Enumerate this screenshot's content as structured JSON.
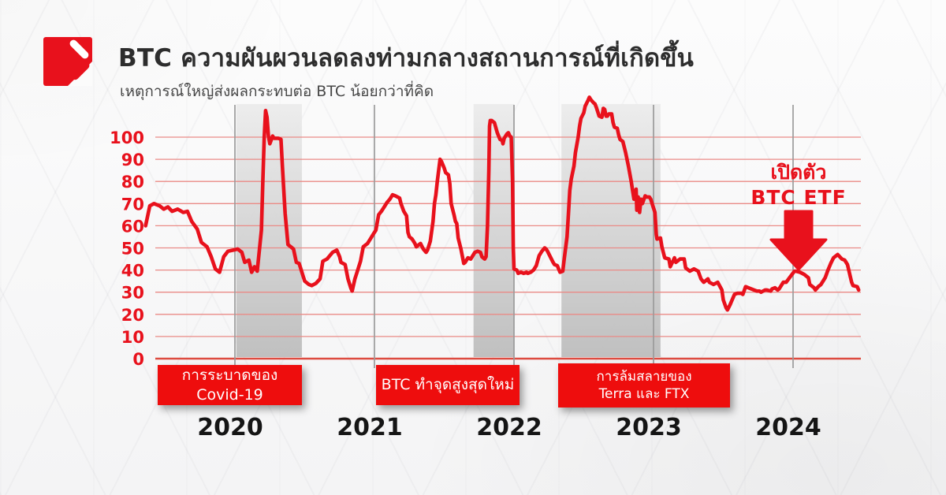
{
  "header": {
    "title": "BTC ความผันผวนลดลงท่ามกลางสถานการณ์ที่เกิดขึ้น",
    "subtitle": "เหตุการณ์ใหญ่ส่งผลกระทบต่อ BTC น้อยกว่าที่คิด"
  },
  "colors": {
    "line_red": "#e8111c",
    "box_red": "#ee0d0d",
    "grid_pink": "#ea8a86",
    "axis_red": "#dd4b40",
    "band_gray_top": "#ececec",
    "band_gray_bottom": "#bdbdbd",
    "year_line_gray": "#9b9b9b",
    "title_dark": "#2d2d2d"
  },
  "chart_data": {
    "type": "line",
    "xlabel": "",
    "ylabel": "",
    "x_unit": "year",
    "ylim": [
      0,
      120
    ],
    "xlim": [
      2019.36,
      2024.55
    ],
    "grid": true,
    "y_ticks": [
      0,
      10,
      20,
      30,
      40,
      50,
      60,
      70,
      80,
      90,
      100
    ],
    "x_ticks": [
      2020,
      2021,
      2022,
      2023,
      2024
    ],
    "events": [
      {
        "label": "การระบาดของ Covid-19",
        "band_start": 2020.01,
        "band_end": 2020.48
      },
      {
        "label": "BTC ทำจุดสูงสุดใหม่",
        "band_start": 2021.71,
        "band_end": 2022.0
      },
      {
        "lines": [
          "การล้มสลายของ",
          "Terra และ FTX"
        ],
        "band_start": 2022.34,
        "band_end": 2023.05
      }
    ],
    "annotation": {
      "lines": [
        "เปิดตัว",
        "BTC ETF"
      ],
      "x": 2024.04
    },
    "points": [
      [
        2019.36,
        60
      ],
      [
        2019.39,
        69
      ],
      [
        2019.42,
        70
      ],
      [
        2019.46,
        69
      ],
      [
        2019.49,
        67.5
      ],
      [
        2019.52,
        68.5
      ],
      [
        2019.55,
        66.5
      ],
      [
        2019.59,
        67.5
      ],
      [
        2019.63,
        66
      ],
      [
        2019.66,
        66.5
      ],
      [
        2019.69,
        62
      ],
      [
        2019.73,
        58.5
      ],
      [
        2019.76,
        52.5
      ],
      [
        2019.8,
        50.5
      ],
      [
        2019.83,
        46
      ],
      [
        2019.86,
        40.5
      ],
      [
        2019.89,
        39
      ],
      [
        2019.92,
        46
      ],
      [
        2019.95,
        48.5
      ],
      [
        2019.99,
        49
      ],
      [
        2020.02,
        49.5
      ],
      [
        2020.05,
        48
      ],
      [
        2020.07,
        43.5
      ],
      [
        2020.1,
        44.5
      ],
      [
        2020.12,
        39
      ],
      [
        2020.14,
        41.5
      ],
      [
        2020.16,
        39.5
      ],
      [
        2020.19,
        58
      ],
      [
        2020.2,
        80
      ],
      [
        2020.21,
        100
      ],
      [
        2020.22,
        112
      ],
      [
        2020.23,
        109
      ],
      [
        2020.24,
        100.5
      ],
      [
        2020.25,
        97
      ],
      [
        2020.27,
        100.5
      ],
      [
        2020.28,
        99.5
      ],
      [
        2020.31,
        99.5
      ],
      [
        2020.33,
        99
      ],
      [
        2020.34,
        87
      ],
      [
        2020.35,
        76.5
      ],
      [
        2020.36,
        65.5
      ],
      [
        2020.37,
        58.5
      ],
      [
        2020.38,
        51.5
      ],
      [
        2020.4,
        50.5
      ],
      [
        2020.42,
        49.5
      ],
      [
        2020.44,
        43.5
      ],
      [
        2020.46,
        43
      ],
      [
        2020.5,
        35
      ],
      [
        2020.53,
        33.5
      ],
      [
        2020.55,
        33
      ],
      [
        2020.58,
        34
      ],
      [
        2020.61,
        36
      ],
      [
        2020.63,
        44
      ],
      [
        2020.66,
        45
      ],
      [
        2020.68,
        46.5
      ],
      [
        2020.7,
        48
      ],
      [
        2020.73,
        49
      ],
      [
        2020.75,
        46
      ],
      [
        2020.76,
        43.5
      ],
      [
        2020.79,
        42.5
      ],
      [
        2020.81,
        36
      ],
      [
        2020.83,
        32
      ],
      [
        2020.84,
        30.5
      ],
      [
        2020.86,
        36
      ],
      [
        2020.88,
        40
      ],
      [
        2020.9,
        44
      ],
      [
        2020.92,
        50.5
      ],
      [
        2020.95,
        52
      ],
      [
        2020.97,
        54
      ],
      [
        2020.99,
        56
      ],
      [
        2021.01,
        58
      ],
      [
        2021.03,
        65
      ],
      [
        2021.05,
        66.5
      ],
      [
        2021.07,
        68.5
      ],
      [
        2021.09,
        70.5
      ],
      [
        2021.11,
        72
      ],
      [
        2021.13,
        74
      ],
      [
        2021.15,
        73.5
      ],
      [
        2021.18,
        72.5
      ],
      [
        2021.19,
        70
      ],
      [
        2021.21,
        66.5
      ],
      [
        2021.23,
        64.5
      ],
      [
        2021.24,
        57
      ],
      [
        2021.25,
        55
      ],
      [
        2021.27,
        54
      ],
      [
        2021.29,
        52
      ],
      [
        2021.3,
        50.5
      ],
      [
        2021.32,
        51.5
      ],
      [
        2021.33,
        52
      ],
      [
        2021.35,
        49.5
      ],
      [
        2021.37,
        48
      ],
      [
        2021.38,
        49
      ],
      [
        2021.4,
        53
      ],
      [
        2021.42,
        62
      ],
      [
        2021.43,
        70
      ],
      [
        2021.44,
        74
      ],
      [
        2021.45,
        80
      ],
      [
        2021.47,
        90
      ],
      [
        2021.48,
        89
      ],
      [
        2021.5,
        86
      ],
      [
        2021.51,
        84
      ],
      [
        2021.53,
        83
      ],
      [
        2021.54,
        79
      ],
      [
        2021.55,
        70
      ],
      [
        2021.57,
        65
      ],
      [
        2021.58,
        62
      ],
      [
        2021.59,
        61
      ],
      [
        2021.6,
        54.5
      ],
      [
        2021.62,
        49.5
      ],
      [
        2021.64,
        43
      ],
      [
        2021.65,
        43.5
      ],
      [
        2021.67,
        45.5
      ],
      [
        2021.69,
        45
      ],
      [
        2021.71,
        47
      ],
      [
        2021.72,
        48
      ],
      [
        2021.74,
        48.5
      ],
      [
        2021.76,
        48
      ],
      [
        2021.77,
        46
      ],
      [
        2021.79,
        45
      ],
      [
        2021.8,
        46
      ],
      [
        2021.81,
        60
      ],
      [
        2021.82,
        85
      ],
      [
        2021.825,
        105
      ],
      [
        2021.83,
        107.5
      ],
      [
        2021.84,
        107.5
      ],
      [
        2021.85,
        107
      ],
      [
        2021.86,
        106.5
      ],
      [
        2021.88,
        102
      ],
      [
        2021.89,
        100.5
      ],
      [
        2021.9,
        99
      ],
      [
        2021.915,
        98.5
      ],
      [
        2021.921,
        97
      ],
      [
        2021.93,
        99.5
      ],
      [
        2021.95,
        101.5
      ],
      [
        2021.96,
        102
      ],
      [
        2021.97,
        100.5
      ],
      [
        2021.98,
        100
      ],
      [
        2021.99,
        80
      ],
      [
        2021.995,
        50
      ],
      [
        2022.0,
        40.5
      ],
      [
        2022.02,
        40
      ],
      [
        2022.03,
        38.5
      ],
      [
        2022.05,
        39
      ],
      [
        2022.07,
        38.5
      ],
      [
        2022.09,
        39
      ],
      [
        2022.1,
        38.5
      ],
      [
        2022.12,
        39
      ],
      [
        2022.14,
        40
      ],
      [
        2022.16,
        42
      ],
      [
        2022.18,
        46.5
      ],
      [
        2022.2,
        48.5
      ],
      [
        2022.22,
        50
      ],
      [
        2022.23,
        49.5
      ],
      [
        2022.24,
        48.5
      ],
      [
        2022.26,
        46
      ],
      [
        2022.28,
        43.5
      ],
      [
        2022.29,
        42.5
      ],
      [
        2022.31,
        42
      ],
      [
        2022.33,
        39
      ],
      [
        2022.35,
        39.5
      ],
      [
        2022.36,
        45
      ],
      [
        2022.38,
        55
      ],
      [
        2022.39,
        65
      ],
      [
        2022.4,
        76
      ],
      [
        2022.41,
        81
      ],
      [
        2022.43,
        87
      ],
      [
        2022.44,
        93
      ],
      [
        2022.46,
        100
      ],
      [
        2022.47,
        105
      ],
      [
        2022.48,
        108.5
      ],
      [
        2022.5,
        111
      ],
      [
        2022.51,
        114
      ],
      [
        2022.53,
        116.5
      ],
      [
        2022.54,
        118
      ],
      [
        2022.55,
        117
      ],
      [
        2022.57,
        115.5
      ],
      [
        2022.58,
        115
      ],
      [
        2022.59,
        113.5
      ],
      [
        2022.6,
        111.5
      ],
      [
        2022.61,
        109.5
      ],
      [
        2022.63,
        109
      ],
      [
        2022.64,
        113
      ],
      [
        2022.65,
        112.5
      ],
      [
        2022.66,
        109.5
      ],
      [
        2022.67,
        109.5
      ],
      [
        2022.68,
        110.5
      ],
      [
        2022.7,
        110.5
      ],
      [
        2022.71,
        106.5
      ],
      [
        2022.72,
        104.5
      ],
      [
        2022.74,
        104
      ],
      [
        2022.75,
        101
      ],
      [
        2022.76,
        99
      ],
      [
        2022.78,
        98
      ],
      [
        2022.8,
        93
      ],
      [
        2022.82,
        87
      ],
      [
        2022.84,
        80
      ],
      [
        2022.85,
        76
      ],
      [
        2022.86,
        72
      ],
      [
        2022.875,
        76.5
      ],
      [
        2022.88,
        67
      ],
      [
        2022.89,
        73
      ],
      [
        2022.9,
        66
      ],
      [
        2022.91,
        72
      ],
      [
        2022.92,
        70
      ],
      [
        2022.94,
        73.5
      ],
      [
        2022.95,
        73
      ],
      [
        2022.97,
        73
      ],
      [
        2022.98,
        72
      ],
      [
        2022.99,
        70
      ],
      [
        2023.01,
        66
      ],
      [
        2023.02,
        56
      ],
      [
        2023.025,
        54
      ],
      [
        2023.05,
        54.5
      ],
      [
        2023.06,
        50.5
      ],
      [
        2023.08,
        45.5
      ],
      [
        2023.11,
        45
      ],
      [
        2023.12,
        41.5
      ],
      [
        2023.15,
        45.5
      ],
      [
        2023.16,
        43.5
      ],
      [
        2023.18,
        44.5
      ],
      [
        2023.19,
        45
      ],
      [
        2023.22,
        45
      ],
      [
        2023.23,
        41
      ],
      [
        2023.26,
        39.5
      ],
      [
        2023.29,
        40.5
      ],
      [
        2023.32,
        39.5
      ],
      [
        2023.34,
        36
      ],
      [
        2023.36,
        34.5
      ],
      [
        2023.39,
        36
      ],
      [
        2023.4,
        34.5
      ],
      [
        2023.43,
        33.5
      ],
      [
        2023.46,
        34.5
      ],
      [
        2023.49,
        31
      ],
      [
        2023.5,
        26.5
      ],
      [
        2023.52,
        23
      ],
      [
        2023.53,
        22
      ],
      [
        2023.55,
        24.5
      ],
      [
        2023.56,
        26
      ],
      [
        2023.58,
        29
      ],
      [
        2023.6,
        29.5
      ],
      [
        2023.63,
        29.5
      ],
      [
        2023.64,
        29
      ],
      [
        2023.66,
        32.5
      ],
      [
        2023.68,
        32
      ],
      [
        2023.7,
        31.5
      ],
      [
        2023.72,
        31
      ],
      [
        2023.74,
        30.5
      ],
      [
        2023.76,
        30.5
      ],
      [
        2023.77,
        30
      ],
      [
        2023.8,
        31
      ],
      [
        2023.81,
        31
      ],
      [
        2023.84,
        30.5
      ],
      [
        2023.85,
        31.5
      ],
      [
        2023.87,
        32
      ],
      [
        2023.89,
        31
      ],
      [
        2023.9,
        31.5
      ],
      [
        2023.93,
        34.5
      ],
      [
        2023.95,
        34.5
      ],
      [
        2023.98,
        37
      ],
      [
        2024.01,
        39.5
      ],
      [
        2024.02,
        39.5
      ],
      [
        2024.05,
        39
      ],
      [
        2024.08,
        38
      ],
      [
        2024.11,
        36.5
      ],
      [
        2024.12,
        33.5
      ],
      [
        2024.15,
        32
      ],
      [
        2024.16,
        31
      ],
      [
        2024.18,
        32.5
      ],
      [
        2024.2,
        33.5
      ],
      [
        2024.23,
        36.5
      ],
      [
        2024.25,
        40
      ],
      [
        2024.27,
        43
      ],
      [
        2024.29,
        45.5
      ],
      [
        2024.32,
        47
      ],
      [
        2024.35,
        45
      ],
      [
        2024.37,
        44.5
      ],
      [
        2024.39,
        42.5
      ],
      [
        2024.42,
        34.5
      ],
      [
        2024.43,
        33
      ],
      [
        2024.46,
        32.5
      ],
      [
        2024.47,
        31
      ]
    ]
  }
}
